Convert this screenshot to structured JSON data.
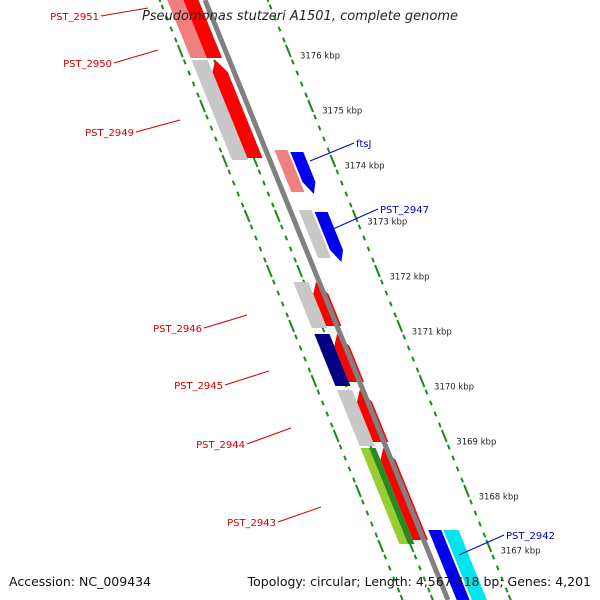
{
  "title": "Pseudomonas stutzeri A1501, complete genome",
  "footer": {
    "accession": "Accession: NC_009434",
    "topology": "Topology: circular; Length: 4,567,418 bp; Genes: 4,201"
  },
  "colors": {
    "backbone": "#808080",
    "tick": "#1a8a1a",
    "forward_label": "#cc0000",
    "reverse_label": "#0000bb",
    "cds_red": "#ff0000",
    "cds_pink": "#f08080",
    "cds_gray": "#c8c8c8",
    "cds_blue": "#0000ee",
    "cds_navy": "#000080",
    "cds_green": "#228b22",
    "cds_yellowgreen": "#9acd32",
    "cds_cyan": "#00e5ee"
  },
  "scale": {
    "labels": [
      "3176 kbp",
      "3175 kbp",
      "3174 kbp",
      "3173 kbp",
      "3172 kbp",
      "3171 kbp",
      "3170 kbp",
      "3169 kbp",
      "3168 kbp",
      "3167 kbp"
    ]
  },
  "genes": [
    {
      "label": "PST_2951",
      "strand": "forward"
    },
    {
      "label": "PST_2950",
      "strand": "forward"
    },
    {
      "label": "PST_2949",
      "strand": "forward"
    },
    {
      "label": "ftsJ",
      "strand": "reverse"
    },
    {
      "label": "PST_2947",
      "strand": "reverse"
    },
    {
      "label": "PST_2946",
      "strand": "forward"
    },
    {
      "label": "PST_2945",
      "strand": "forward"
    },
    {
      "label": "PST_2944",
      "strand": "forward"
    },
    {
      "label": "PST_2943",
      "strand": "forward"
    },
    {
      "label": "PST_2942",
      "strand": "reverse"
    }
  ]
}
